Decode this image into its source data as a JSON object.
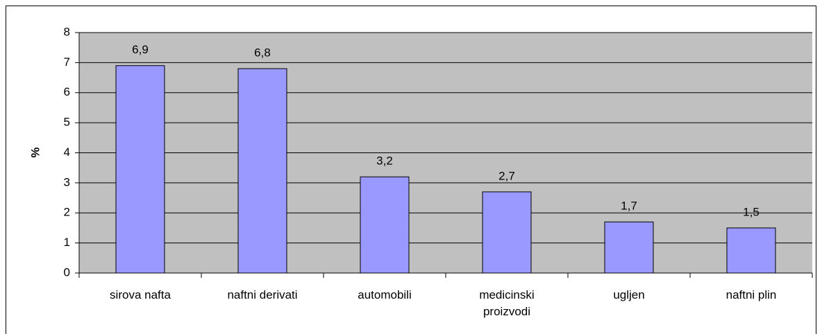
{
  "chart_data": {
    "type": "bar",
    "y_label": "%",
    "categories": [
      "sirova nafta",
      "naftni derivati",
      "automobili",
      "medicinski proizvodi",
      "ugljen",
      "naftni plin"
    ],
    "values": [
      6.9,
      6.8,
      3.2,
      2.7,
      1.7,
      1.5
    ],
    "value_labels": [
      "6,9",
      "6,8",
      "3,2",
      "2,7",
      "1,7",
      "1,5"
    ],
    "color": "#9999ff",
    "ylim": [
      0,
      8
    ],
    "yticks": [
      0,
      1,
      2,
      3,
      4,
      5,
      6,
      7,
      8
    ],
    "grid": true
  }
}
